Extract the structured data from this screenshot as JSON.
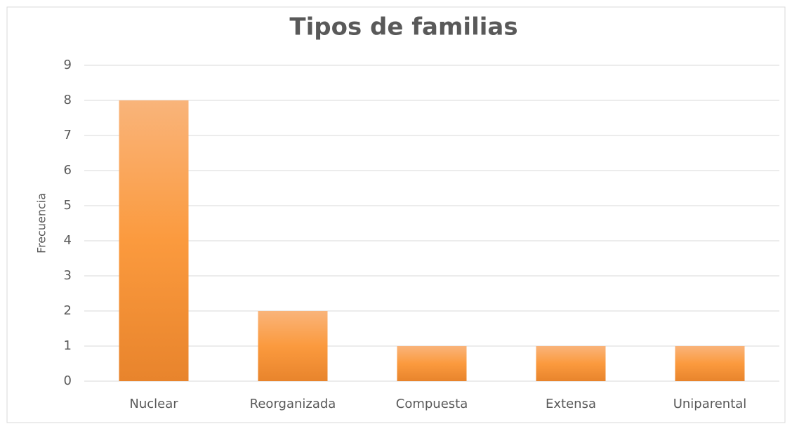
{
  "chart_data": {
    "type": "bar",
    "title": "Tipos de familias",
    "y_label": "Frecuencia",
    "categories": [
      "Nuclear",
      "Reorganizada",
      "Compuesta",
      "Extensa",
      "Uniparental"
    ],
    "values": [
      8,
      2,
      1,
      1,
      1
    ],
    "color": "#f08c2f",
    "ylim": [
      0,
      9
    ],
    "yticks": [
      0,
      1,
      2,
      3,
      4,
      5,
      6,
      7,
      8,
      9
    ],
    "grid": true
  }
}
